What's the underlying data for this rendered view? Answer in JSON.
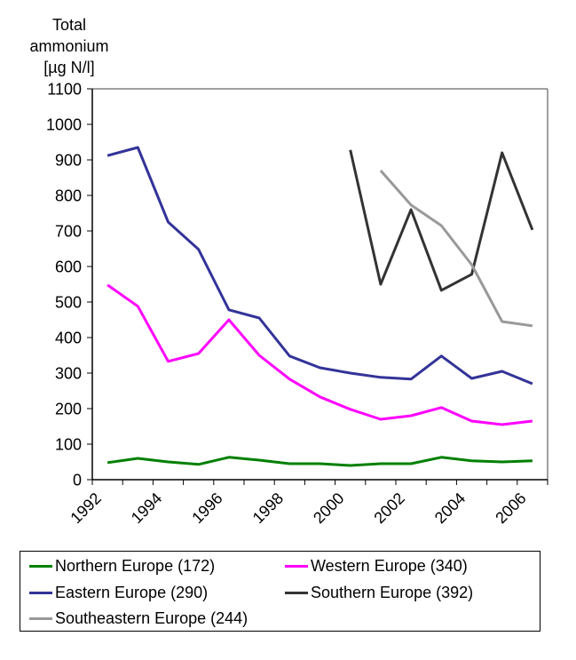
{
  "chart_data": {
    "type": "line",
    "title": "",
    "ylabel": "Total ammonium [µg N/l]",
    "ylabel_lines": [
      "Total",
      "ammonium",
      "[µg N/l]"
    ],
    "xlabel": "",
    "x": [
      1992,
      1993,
      1994,
      1995,
      1996,
      1997,
      1998,
      1999,
      2000,
      2001,
      2002,
      2003,
      2004,
      2005,
      2006
    ],
    "xtick_labels": [
      "1992",
      "",
      "1994",
      "",
      "1996",
      "",
      "1998",
      "",
      "2000",
      "",
      "2002",
      "",
      "2004",
      "",
      "2006"
    ],
    "ylim": [
      0,
      1100
    ],
    "yticks": [
      0,
      100,
      200,
      300,
      400,
      500,
      600,
      700,
      800,
      900,
      1000,
      1100
    ],
    "grid": false,
    "legend_position": "bottom",
    "series": [
      {
        "name": "Northern Europe (172)",
        "color": "#008000",
        "values": [
          48,
          60,
          50,
          43,
          63,
          55,
          45,
          45,
          40,
          45,
          45,
          63,
          53,
          50,
          53
        ]
      },
      {
        "name": "Western Europe (340)",
        "color": "#ff00ff",
        "values": [
          548,
          488,
          333,
          355,
          450,
          350,
          283,
          233,
          198,
          170,
          180,
          203,
          165,
          155,
          165
        ]
      },
      {
        "name": "Eastern Europe (290)",
        "color": "#333399",
        "values": [
          912,
          935,
          725,
          648,
          478,
          455,
          348,
          315,
          300,
          288,
          283,
          348,
          285,
          305,
          270
        ]
      },
      {
        "name": "Southern Europe (392)",
        "color": "#333333",
        "values": [
          null,
          null,
          null,
          null,
          null,
          null,
          null,
          null,
          928,
          550,
          760,
          533,
          578,
          920,
          703
        ]
      },
      {
        "name": "Southeastern Europe (244)",
        "color": "#999999",
        "values": [
          null,
          null,
          null,
          null,
          null,
          null,
          null,
          null,
          null,
          870,
          773,
          715,
          605,
          445,
          433
        ]
      }
    ]
  }
}
